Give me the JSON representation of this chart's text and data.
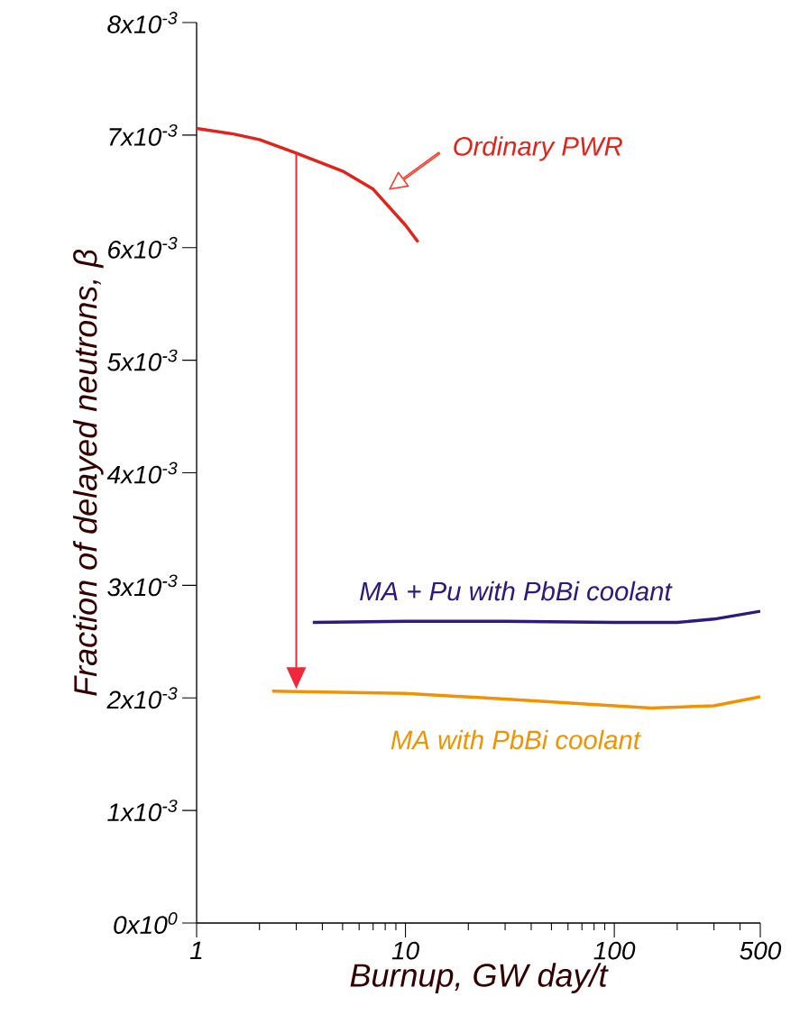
{
  "chart_data": {
    "type": "line",
    "xlabel": "Burnup, GW day/t",
    "ylabel": "Fraction of delayed neutrons, β",
    "log": "x",
    "xlim": [
      1,
      500
    ],
    "ylim": [
      0,
      0.008
    ],
    "xticks": [
      1,
      10,
      100,
      500
    ],
    "yticks": [
      {
        "value": 0,
        "label": "0x10$^{0}$"
      },
      {
        "value": 0.001,
        "label": "1x10$^{-3}$"
      },
      {
        "value": 0.002,
        "label": "2x10$^{-3}$"
      },
      {
        "value": 0.003,
        "label": "3x10$^{-3}$"
      },
      {
        "value": 0.004,
        "label": "4x10$^{-3}$"
      },
      {
        "value": 0.005,
        "label": "5x10$^{-3}$"
      },
      {
        "value": 0.006,
        "label": "6x10$^{-3}$"
      },
      {
        "value": 0.007,
        "label": "7x10$^{-3}$"
      },
      {
        "value": 0.008,
        "label": "8x10$^{-3}$"
      }
    ],
    "grid": false,
    "legend": false,
    "marker": "none",
    "line_style": "solid",
    "series": [
      {
        "name": "Ordinary PWR",
        "color": "#e0241b",
        "x": [
          1,
          1.5,
          2,
          3,
          5,
          7,
          10,
          11.5
        ],
        "values": [
          0.00706,
          0.00701,
          0.00696,
          0.00684,
          0.00668,
          0.00652,
          0.0062,
          0.00605
        ]
      },
      {
        "name": "MA + Pu  with PbBi  coolant",
        "color": "#2e1a7a",
        "x": [
          3.6,
          10,
          30,
          100,
          200,
          300,
          500
        ],
        "values": [
          0.00267,
          0.00268,
          0.00268,
          0.00267,
          0.00267,
          0.0027,
          0.00277
        ]
      },
      {
        "name": "MA with PbBi  coolant",
        "color": "#f39200",
        "x": [
          2.3,
          10,
          30,
          100,
          150,
          300,
          500
        ],
        "values": [
          0.00206,
          0.00204,
          0.00199,
          0.00193,
          0.00191,
          0.00193,
          0.00201
        ]
      }
    ]
  }
}
